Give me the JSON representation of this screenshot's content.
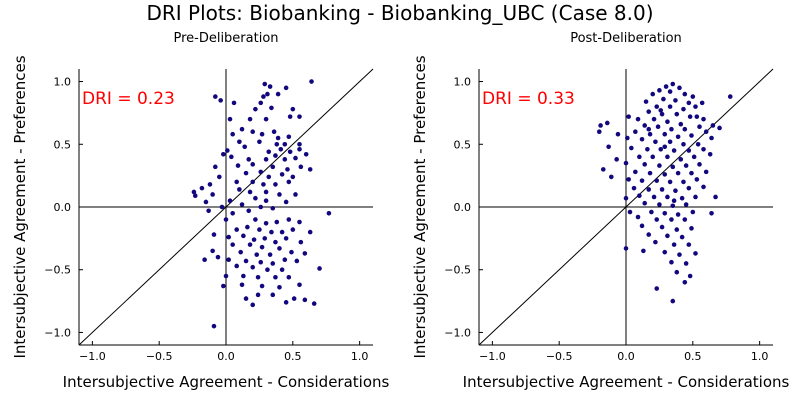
{
  "figure_title": "DRI Plots: Biobanking - Biobanking_UBC (Case 8.0)",
  "chart_data": [
    {
      "type": "scatter",
      "title": "Pre-Deliberation",
      "xlabel": "Intersubjective Agreement - Considerations",
      "ylabel": "Intersubjective Agreement - Preferences",
      "annotation": "DRI = 0.23",
      "annotation_color": "#ff0000",
      "point_color": "#12077e",
      "xlim": [
        -1.1,
        1.1
      ],
      "ylim": [
        -1.1,
        1.1
      ],
      "xticks": [
        -1.0,
        -0.5,
        0.0,
        0.5,
        1.0
      ],
      "yticks": [
        -1.0,
        -0.5,
        0.0,
        0.5,
        1.0
      ],
      "xtick_labels": [
        "−1.0",
        "−0.5",
        "0.0",
        "0.5",
        "1.0"
      ],
      "ytick_labels": [
        "−1.0",
        "−0.5",
        "0.0",
        "0.5",
        "1.0"
      ],
      "grid": false,
      "reference_lines": [
        "x=0",
        "y=0",
        "y=x"
      ],
      "points": [
        [
          -0.08,
          0.88
        ],
        [
          -0.04,
          0.85
        ],
        [
          0.06,
          0.83
        ],
        [
          0.29,
          0.98
        ],
        [
          0.33,
          0.96
        ],
        [
          0.45,
          0.95
        ],
        [
          0.64,
          1.0
        ],
        [
          0.31,
          0.9
        ],
        [
          0.39,
          0.9
        ],
        [
          0.28,
          0.88
        ],
        [
          0.26,
          0.83
        ],
        [
          0.22,
          0.78
        ],
        [
          0.34,
          0.79
        ],
        [
          0.5,
          0.78
        ],
        [
          0.48,
          0.72
        ],
        [
          0.03,
          0.7
        ],
        [
          0.18,
          0.7
        ],
        [
          0.3,
          0.7
        ],
        [
          0.55,
          0.72
        ],
        [
          0.12,
          0.62
        ],
        [
          0.05,
          0.58
        ],
        [
          0.2,
          0.6
        ],
        [
          0.27,
          0.58
        ],
        [
          0.36,
          0.6
        ],
        [
          0.39,
          0.55
        ],
        [
          0.47,
          0.56
        ],
        [
          0.1,
          0.52
        ],
        [
          0.25,
          0.52
        ],
        [
          0.38,
          0.5
        ],
        [
          0.44,
          0.5
        ],
        [
          0.55,
          0.5
        ],
        [
          0.01,
          0.45
        ],
        [
          0.14,
          0.48
        ],
        [
          0.32,
          0.44
        ],
        [
          0.41,
          0.46
        ],
        [
          0.48,
          0.44
        ],
        [
          0.55,
          0.46
        ],
        [
          -0.02,
          0.42
        ],
        [
          0.04,
          0.4
        ],
        [
          0.17,
          0.38
        ],
        [
          0.3,
          0.38
        ],
        [
          0.37,
          0.41
        ],
        [
          0.44,
          0.38
        ],
        [
          0.52,
          0.39
        ],
        [
          0.6,
          0.42
        ],
        [
          0.09,
          0.33
        ],
        [
          0.2,
          0.34
        ],
        [
          0.35,
          0.32
        ],
        [
          0.46,
          0.3
        ],
        [
          0.56,
          0.32
        ],
        [
          -0.08,
          0.32
        ],
        [
          0.15,
          0.27
        ],
        [
          0.26,
          0.28
        ],
        [
          0.32,
          0.24
        ],
        [
          0.42,
          0.26
        ],
        [
          0.5,
          0.24
        ],
        [
          0.63,
          0.3
        ],
        [
          -0.05,
          0.24
        ],
        [
          0.08,
          0.2
        ],
        [
          0.2,
          0.2
        ],
        [
          0.28,
          0.18
        ],
        [
          0.37,
          0.18
        ],
        [
          0.47,
          0.2
        ],
        [
          -0.12,
          0.18
        ],
        [
          -0.18,
          0.15
        ],
        [
          0.1,
          0.14
        ],
        [
          0.18,
          0.12
        ],
        [
          0.3,
          0.12
        ],
        [
          0.4,
          0.1
        ],
        [
          0.52,
          0.1
        ],
        [
          -0.24,
          0.12
        ],
        [
          -0.23,
          0.09
        ],
        [
          -0.1,
          0.1
        ],
        [
          0.03,
          0.05
        ],
        [
          0.22,
          0.07
        ],
        [
          0.3,
          0.05
        ],
        [
          0.45,
          0.04
        ],
        [
          -0.15,
          0.04
        ],
        [
          -0.03,
          0.0
        ],
        [
          0.12,
          0.02
        ],
        [
          0.26,
          0.0
        ],
        [
          -0.13,
          -0.03
        ],
        [
          0.05,
          -0.05
        ],
        [
          0.17,
          -0.03
        ],
        [
          0.35,
          -0.01
        ],
        [
          0.77,
          -0.05
        ],
        [
          0.0,
          -0.1
        ],
        [
          0.22,
          -0.1
        ],
        [
          0.3,
          -0.13
        ],
        [
          0.38,
          -0.12
        ],
        [
          0.47,
          -0.1
        ],
        [
          0.55,
          -0.12
        ],
        [
          0.08,
          -0.18
        ],
        [
          0.16,
          -0.16
        ],
        [
          0.25,
          -0.18
        ],
        [
          0.34,
          -0.2
        ],
        [
          0.42,
          -0.2
        ],
        [
          0.5,
          -0.18
        ],
        [
          -0.09,
          -0.22
        ],
        [
          0.02,
          -0.24
        ],
        [
          0.13,
          -0.23
        ],
        [
          0.21,
          -0.26
        ],
        [
          0.29,
          -0.25
        ],
        [
          0.37,
          -0.28
        ],
        [
          0.45,
          -0.25
        ],
        [
          0.56,
          -0.28
        ],
        [
          0.63,
          -0.2
        ],
        [
          0.05,
          -0.3
        ],
        [
          0.18,
          -0.3
        ],
        [
          0.27,
          -0.32
        ],
        [
          0.4,
          -0.33
        ],
        [
          -0.1,
          -0.35
        ],
        [
          0.11,
          -0.36
        ],
        [
          0.23,
          -0.38
        ],
        [
          0.33,
          -0.38
        ],
        [
          0.49,
          -0.36
        ],
        [
          0.59,
          -0.37
        ],
        [
          -0.06,
          -0.4
        ],
        [
          0.02,
          -0.42
        ],
        [
          0.15,
          -0.43
        ],
        [
          0.26,
          -0.44
        ],
        [
          0.35,
          -0.45
        ],
        [
          0.44,
          -0.42
        ],
        [
          0.53,
          -0.43
        ],
        [
          -0.16,
          -0.42
        ],
        [
          0.08,
          -0.47
        ],
        [
          0.2,
          -0.48
        ],
        [
          0.31,
          -0.5
        ],
        [
          0.42,
          -0.5
        ],
        [
          0.7,
          -0.49
        ],
        [
          0.0,
          -0.55
        ],
        [
          0.13,
          -0.55
        ],
        [
          0.24,
          -0.56
        ],
        [
          0.37,
          -0.56
        ],
        [
          0.47,
          -0.56
        ],
        [
          -0.02,
          -0.63
        ],
        [
          0.12,
          -0.62
        ],
        [
          0.27,
          -0.63
        ],
        [
          0.4,
          -0.64
        ],
        [
          0.55,
          -0.62
        ],
        [
          0.24,
          -0.7
        ],
        [
          0.35,
          -0.7
        ],
        [
          0.15,
          -0.73
        ],
        [
          0.51,
          -0.73
        ],
        [
          0.59,
          -0.74
        ],
        [
          0.45,
          -0.76
        ],
        [
          0.2,
          -0.78
        ],
        [
          0.66,
          -0.77
        ],
        [
          -0.09,
          -0.95
        ]
      ]
    },
    {
      "type": "scatter",
      "title": "Post-Deliberation",
      "xlabel": "Intersubjective Agreement - Considerations",
      "ylabel": "Intersubjective Agreement - Preferences",
      "annotation": "DRI = 0.33",
      "annotation_color": "#ff0000",
      "point_color": "#12077e",
      "xlim": [
        -1.1,
        1.1
      ],
      "ylim": [
        -1.1,
        1.1
      ],
      "xticks": [
        -1.0,
        -0.5,
        0.0,
        0.5,
        1.0
      ],
      "yticks": [
        -1.0,
        -0.5,
        0.0,
        0.5,
        1.0
      ],
      "xtick_labels": [
        "−1.0",
        "−0.5",
        "0.0",
        "0.5",
        "1.0"
      ],
      "ytick_labels": [
        "−1.0",
        "−0.5",
        "0.0",
        "0.5",
        "1.0"
      ],
      "grid": false,
      "reference_lines": [
        "x=0",
        "y=0",
        "y=x"
      ],
      "points": [
        [
          0.35,
          0.98
        ],
        [
          0.3,
          0.96
        ],
        [
          0.4,
          0.95
        ],
        [
          0.25,
          0.93
        ],
        [
          0.33,
          0.92
        ],
        [
          0.44,
          0.9
        ],
        [
          0.5,
          0.88
        ],
        [
          0.2,
          0.9
        ],
        [
          0.28,
          0.86
        ],
        [
          0.37,
          0.85
        ],
        [
          0.47,
          0.83
        ],
        [
          0.15,
          0.84
        ],
        [
          0.23,
          0.8
        ],
        [
          0.33,
          0.8
        ],
        [
          0.43,
          0.78
        ],
        [
          0.52,
          0.8
        ],
        [
          0.17,
          0.76
        ],
        [
          0.27,
          0.74
        ],
        [
          0.38,
          0.74
        ],
        [
          0.48,
          0.72
        ],
        [
          0.58,
          0.7
        ],
        [
          0.09,
          0.7
        ],
        [
          0.21,
          0.7
        ],
        [
          0.31,
          0.68
        ],
        [
          0.41,
          0.66
        ],
        [
          0.02,
          0.72
        ],
        [
          0.14,
          0.65
        ],
        [
          0.24,
          0.64
        ],
        [
          0.34,
          0.62
        ],
        [
          0.44,
          0.62
        ],
        [
          0.55,
          0.64
        ],
        [
          0.65,
          0.65
        ],
        [
          -0.14,
          0.67
        ],
        [
          -0.19,
          0.65
        ],
        [
          0.07,
          0.6
        ],
        [
          0.18,
          0.58
        ],
        [
          0.29,
          0.58
        ],
        [
          0.39,
          0.56
        ],
        [
          0.49,
          0.57
        ],
        [
          0.6,
          0.6
        ],
        [
          0.7,
          0.63
        ],
        [
          -0.2,
          0.6
        ],
        [
          -0.06,
          0.58
        ],
        [
          0.01,
          0.55
        ],
        [
          0.12,
          0.54
        ],
        [
          0.22,
          0.52
        ],
        [
          0.33,
          0.52
        ],
        [
          0.43,
          0.5
        ],
        [
          0.54,
          0.5
        ],
        [
          0.64,
          0.55
        ],
        [
          0.78,
          0.88
        ],
        [
          0.04,
          0.47
        ],
        [
          0.16,
          0.46
        ],
        [
          0.26,
          0.46
        ],
        [
          0.36,
          0.45
        ],
        [
          0.47,
          0.45
        ],
        [
          0.58,
          0.46
        ],
        [
          -0.13,
          0.48
        ],
        [
          0.1,
          0.4
        ],
        [
          0.2,
          0.4
        ],
        [
          0.31,
          0.4
        ],
        [
          0.41,
          0.38
        ],
        [
          0.51,
          0.4
        ],
        [
          0.63,
          0.42
        ],
        [
          0.0,
          0.35
        ],
        [
          0.14,
          0.34
        ],
        [
          0.25,
          0.33
        ],
        [
          0.35,
          0.32
        ],
        [
          0.45,
          0.33
        ],
        [
          0.55,
          0.34
        ],
        [
          -0.07,
          0.38
        ],
        [
          0.07,
          0.28
        ],
        [
          0.18,
          0.27
        ],
        [
          0.29,
          0.26
        ],
        [
          0.39,
          0.27
        ],
        [
          0.49,
          0.27
        ],
        [
          0.6,
          0.28
        ],
        [
          -0.17,
          0.3
        ],
        [
          0.02,
          0.22
        ],
        [
          0.12,
          0.21
        ],
        [
          0.23,
          0.21
        ],
        [
          0.33,
          0.2
        ],
        [
          0.43,
          0.2
        ],
        [
          0.53,
          0.22
        ],
        [
          -0.11,
          0.24
        ],
        [
          0.06,
          0.15
        ],
        [
          0.17,
          0.14
        ],
        [
          0.27,
          0.14
        ],
        [
          0.37,
          0.13
        ],
        [
          0.47,
          0.15
        ],
        [
          0.58,
          0.16
        ],
        [
          0.1,
          0.09
        ],
        [
          0.21,
          0.08
        ],
        [
          0.31,
          0.08
        ],
        [
          0.42,
          0.07
        ],
        [
          0.52,
          0.08
        ],
        [
          0.67,
          0.08
        ],
        [
          0.0,
          0.07
        ],
        [
          0.14,
          0.03
        ],
        [
          0.25,
          0.02
        ],
        [
          0.35,
          0.01
        ],
        [
          0.45,
          0.02
        ],
        [
          0.03,
          -0.04
        ],
        [
          0.19,
          -0.04
        ],
        [
          0.29,
          -0.05
        ],
        [
          0.39,
          -0.06
        ],
        [
          0.5,
          -0.04
        ],
        [
          0.64,
          -0.05
        ],
        [
          0.09,
          -0.08
        ],
        [
          0.23,
          -0.1
        ],
        [
          0.34,
          -0.1
        ],
        [
          0.44,
          -0.1
        ],
        [
          0.12,
          -0.15
        ],
        [
          0.27,
          -0.16
        ],
        [
          0.38,
          -0.18
        ],
        [
          0.49,
          -0.17
        ],
        [
          0.17,
          -0.22
        ],
        [
          0.31,
          -0.23
        ],
        [
          0.42,
          -0.24
        ],
        [
          0.22,
          -0.28
        ],
        [
          0.36,
          -0.3
        ],
        [
          0.47,
          -0.3
        ],
        [
          0.0,
          -0.33
        ],
        [
          0.13,
          -0.35
        ],
        [
          0.29,
          -0.36
        ],
        [
          0.4,
          -0.38
        ],
        [
          0.52,
          -0.37
        ],
        [
          0.34,
          -0.44
        ],
        [
          0.45,
          -0.45
        ],
        [
          0.38,
          -0.52
        ],
        [
          0.48,
          -0.55
        ],
        [
          0.44,
          -0.6
        ],
        [
          0.23,
          -0.65
        ],
        [
          0.35,
          -0.75
        ],
        [
          0.53,
          0.72
        ],
        [
          0.57,
          0.83
        ],
        [
          0.26,
          0.77
        ],
        [
          0.17,
          0.62
        ],
        [
          0.36,
          0.05
        ],
        [
          0.29,
          0.48
        ]
      ]
    }
  ]
}
